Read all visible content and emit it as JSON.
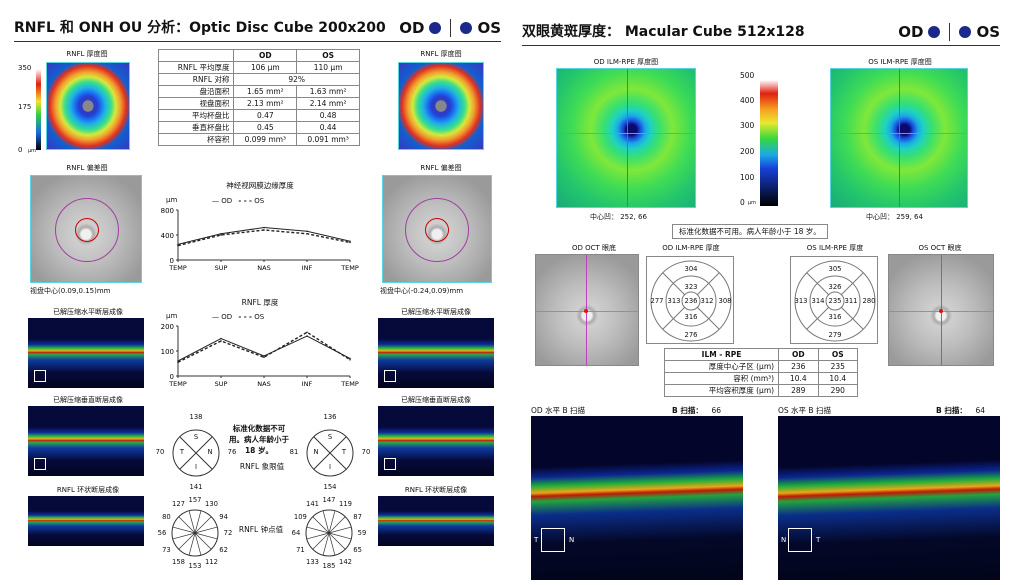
{
  "left": {
    "title": "RNFL 和 ONH OU 分析：Optic Disc Cube 200x200",
    "od": "OD",
    "os": "OS",
    "thickness_map_label": "RNFL 厚度图",
    "scale": [
      "350",
      "175",
      "0"
    ],
    "scale_unit": "μm",
    "deviation_map_label": "RNFL 偏差图",
    "disc_center_od": "视盘中心(0.09,0.15)mm",
    "disc_center_os": "视盘中心(-0.24,0.09)mm",
    "horiz_label": "已解压缩水平断层成像",
    "vert_label": "已解压缩垂直断层成像",
    "circ_label": "RNFL 环状断层成像",
    "table": {
      "headers": [
        "",
        "OD",
        "OS"
      ],
      "rows": [
        [
          "RNFL 平均厚度",
          "106 μm",
          "110 μm"
        ],
        [
          "RNFL 对称",
          "92%",
          ""
        ],
        [
          "盘沿面积",
          "1.65 mm²",
          "1.63 mm²"
        ],
        [
          "视盘面积",
          "2.13 mm²",
          "2.14 mm²"
        ],
        [
          "平均杯盘比",
          "0.47",
          "0.48"
        ],
        [
          "垂直杯盘比",
          "0.45",
          "0.44"
        ],
        [
          "杯容积",
          "0.099 mm³",
          "0.091 mm³"
        ]
      ]
    },
    "chart1": {
      "title": "神经视网膜边缘厚度",
      "unit": "μm",
      "legend_od": "OD",
      "legend_os": "OS",
      "y_ticks": [
        "800",
        "400",
        "0"
      ],
      "x_ticks": [
        "TEMP",
        "SUP",
        "NAS",
        "INF",
        "TEMP"
      ]
    },
    "chart2": {
      "title": "RNFL 厚度",
      "unit": "μm",
      "legend_od": "OD",
      "legend_os": "OS",
      "y_ticks": [
        "200",
        "100",
        "0"
      ],
      "x_ticks": [
        "TEMP",
        "SUP",
        "NAS",
        "INF",
        "TEMP"
      ]
    },
    "quad_note": "标准化数据不可用。病人年龄小于 18 岁。",
    "quad_label": "RNFL 象限值",
    "clock_label": "RNFL 钟点值",
    "quad_od": {
      "top": "138",
      "left": "70",
      "right": "76",
      "bottom": "141",
      "s": "S",
      "t": "T",
      "n": "N",
      "i": "I"
    },
    "quad_os": {
      "top": "136",
      "left": "81",
      "right": "70",
      "bottom": "154",
      "s": "S",
      "t": "T",
      "n": "N",
      "i": "I"
    },
    "clock_od": [
      "157",
      "130",
      "94",
      "72",
      "62",
      "112",
      "153",
      "158",
      "73",
      "56",
      "80",
      "127"
    ],
    "clock_os": [
      "147",
      "119",
      "87",
      "59",
      "65",
      "142",
      "185",
      "133",
      "71",
      "64",
      "109",
      "141"
    ]
  },
  "chart_data": [
    {
      "type": "line",
      "title": "神经视网膜边缘厚度",
      "ylabel": "μm",
      "ylim": [
        0,
        800
      ],
      "x": [
        "TEMP",
        "SUP",
        "NAS",
        "INF",
        "TEMP"
      ],
      "series": [
        {
          "name": "OD",
          "values": [
            250,
            420,
            520,
            460,
            300
          ]
        },
        {
          "name": "OS",
          "values": [
            230,
            400,
            480,
            420,
            280
          ]
        }
      ]
    },
    {
      "type": "line",
      "title": "RNFL 厚度",
      "ylabel": "μm",
      "ylim": [
        0,
        200
      ],
      "x": [
        "TEMP",
        "SUP",
        "NAS",
        "INF",
        "TEMP"
      ],
      "series": [
        {
          "name": "OD",
          "values": [
            60,
            150,
            80,
            160,
            70
          ]
        },
        {
          "name": "OS",
          "values": [
            55,
            140,
            75,
            175,
            65
          ]
        }
      ]
    }
  ],
  "right": {
    "title": "双眼黄斑厚度： Macular Cube 512x128",
    "od": "OD",
    "os": "OS",
    "od_map_label": "OD ILM-RPE 厚度图",
    "os_map_label": "OS ILM-RPE 厚度图",
    "scale": [
      "500",
      "400",
      "300",
      "200",
      "100",
      "0"
    ],
    "scale_unit": "μm",
    "fovea_od": "中心凹： 252, 66",
    "fovea_os": "中心凹： 259, 64",
    "note": "标准化数据不可用。病人年龄小于 18 岁。",
    "od_fundus_label": "OD OCT 眼底",
    "os_fundus_label": "OS OCT 眼底",
    "od_grid_label": "OD ILM-RPE 厚度",
    "os_grid_label": "OS ILM-RPE 厚度",
    "od_grid": {
      "outer_top": "304",
      "inner_top": "323",
      "outer_left": "277",
      "inner_left": "313",
      "center": "236",
      "inner_right": "312",
      "outer_right": "308",
      "inner_bottom": "316",
      "outer_bottom": "276"
    },
    "os_grid": {
      "outer_top": "305",
      "inner_top": "326",
      "outer_left": "313",
      "inner_left": "314",
      "center": "235",
      "inner_right": "311",
      "outer_right": "280",
      "inner_bottom": "316",
      "outer_bottom": "279"
    },
    "table": {
      "headers": [
        "ILM - RPE",
        "OD",
        "OS"
      ],
      "rows": [
        [
          "厚度中心子区 (μm)",
          "236",
          "235"
        ],
        [
          "容积 (mm³)",
          "10.4",
          "10.4"
        ],
        [
          "平均容积厚度 (μm)",
          "289",
          "290"
        ]
      ]
    },
    "od_bscan_label": "OD 水平 B 扫描",
    "os_bscan_label": "OS 水平 B 扫描",
    "bscan_tag": "B 扫描：",
    "od_bscan_num": "66",
    "os_bscan_num": "64",
    "t": "T",
    "n": "N"
  }
}
